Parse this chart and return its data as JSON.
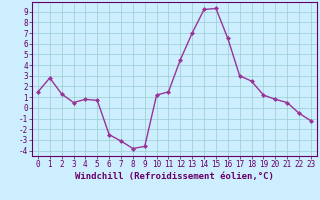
{
  "x": [
    0,
    1,
    2,
    3,
    4,
    5,
    6,
    7,
    8,
    9,
    10,
    11,
    12,
    13,
    14,
    15,
    16,
    17,
    18,
    19,
    20,
    21,
    22,
    23
  ],
  "y": [
    1.5,
    2.8,
    1.3,
    0.5,
    0.8,
    0.7,
    -2.5,
    -3.1,
    -3.8,
    -3.6,
    1.2,
    1.5,
    4.5,
    7.0,
    9.2,
    9.3,
    6.5,
    3.0,
    2.5,
    1.2,
    0.8,
    0.5,
    -0.5,
    -1.2
  ],
  "line_color": "#993399",
  "marker": "D",
  "marker_size": 2.0,
  "bg_color": "#cceeff",
  "grid_color": "#99cccc",
  "xlabel": "Windchill (Refroidissement éolien,°C)",
  "ylim": [
    -4.5,
    9.9
  ],
  "xlim": [
    -0.5,
    23.5
  ],
  "yticks": [
    -4,
    -3,
    -2,
    -1,
    0,
    1,
    2,
    3,
    4,
    5,
    6,
    7,
    8,
    9
  ],
  "xticks": [
    0,
    1,
    2,
    3,
    4,
    5,
    6,
    7,
    8,
    9,
    10,
    11,
    12,
    13,
    14,
    15,
    16,
    17,
    18,
    19,
    20,
    21,
    22,
    23
  ],
  "tick_color": "#660066",
  "spine_color": "#660066",
  "label_fontsize": 6.5,
  "tick_fontsize": 5.5,
  "linewidth": 1.0
}
